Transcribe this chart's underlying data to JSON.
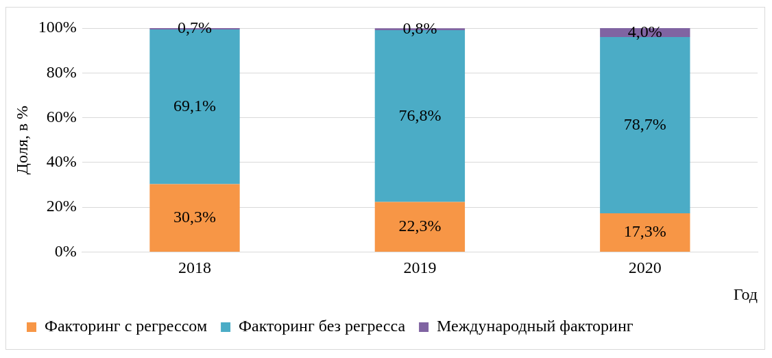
{
  "chart_data": {
    "type": "bar",
    "stacked": true,
    "xlabel": "Год",
    "ylabel": "Доля, в %",
    "categories": [
      "2018",
      "2019",
      "2020"
    ],
    "series": [
      {
        "name": "Факторинг с регрессом",
        "color": "#f79646",
        "values": [
          30.3,
          22.3,
          17.3
        ],
        "value_labels": [
          "30,3%",
          "22,3%",
          "17,3%"
        ]
      },
      {
        "name": "Факторинг без регресса",
        "color": "#4bacc6",
        "values": [
          69.1,
          76.8,
          78.7
        ],
        "value_labels": [
          "69,1%",
          "76,8%",
          "78,7%"
        ]
      },
      {
        "name": "Международный факторинг",
        "color": "#8064a2",
        "values": [
          0.7,
          0.8,
          4.0
        ],
        "value_labels": [
          "0,7%",
          "0,8%",
          "4,0%"
        ]
      }
    ],
    "ylim": [
      0,
      100
    ],
    "yticks": [
      {
        "value": 0,
        "label": "0%"
      },
      {
        "value": 20,
        "label": "20%"
      },
      {
        "value": 40,
        "label": "40%"
      },
      {
        "value": 60,
        "label": "60%"
      },
      {
        "value": 80,
        "label": "80%"
      },
      {
        "value": 100,
        "label": "100%"
      }
    ],
    "grid": "y",
    "legend": "bottom left"
  }
}
